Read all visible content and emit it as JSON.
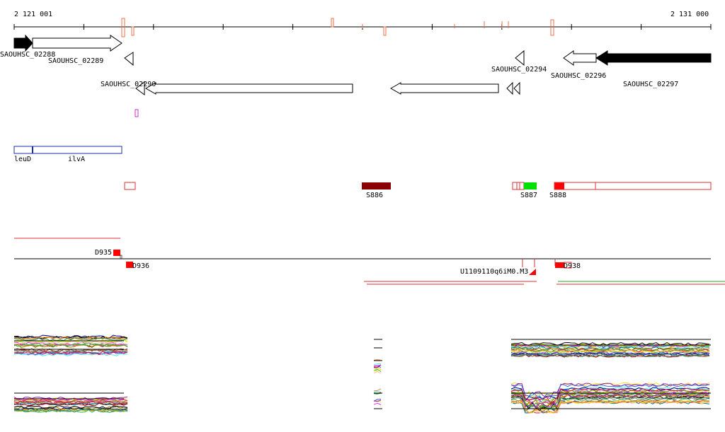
{
  "coordinates": {
    "start": "2 121 001",
    "end": "2 131 000"
  },
  "genes_row1": [
    {
      "label": "SAOUHSC_02288",
      "fill": "#000000"
    },
    {
      "label": "SAOUHSC_02289",
      "fill": "#ffffff"
    }
  ],
  "genes_row2": [
    {
      "label": "SAOUHSC_02294",
      "fill": "#ffffff"
    },
    {
      "label": "SAOUHSC_02296",
      "fill": "#ffffff"
    }
  ],
  "genes_row3": [
    {
      "label": "SAOUHSC_02290",
      "fill": "#ffffff"
    },
    {
      "label": "SAOUHSC_02297",
      "fill": "#000000"
    }
  ],
  "operon_genes": [
    {
      "label": "leuD"
    },
    {
      "label": "ilvA"
    }
  ],
  "segments": [
    {
      "label": "S886",
      "color": "#8b0000"
    },
    {
      "label": "S887",
      "color": "#00e000"
    },
    {
      "label": "S888",
      "color": "#ff0000"
    }
  ],
  "features": [
    {
      "label": "D935"
    },
    {
      "label": "D936"
    },
    {
      "label": "U1109110q6iM0.M3"
    },
    {
      "label": "D938"
    }
  ],
  "colors": {
    "track_red": "#e03030",
    "marker_orange": "#e8704a",
    "operon_blue": "#1a2fb0",
    "green_line": "#22aa22",
    "outline_magenta": "#cc33cc"
  },
  "profile_series_colors": [
    "#e6194b",
    "#3cb44b",
    "#ffe119",
    "#4363d8",
    "#f58231",
    "#911eb4",
    "#46f0f0",
    "#f032e6",
    "#bcf60c",
    "#fabebe",
    "#008080",
    "#9a6324",
    "#800000",
    "#808000",
    "#000075",
    "#808080",
    "#000000",
    "#aa6e28",
    "#ff8c00",
    "#2e8b57"
  ]
}
